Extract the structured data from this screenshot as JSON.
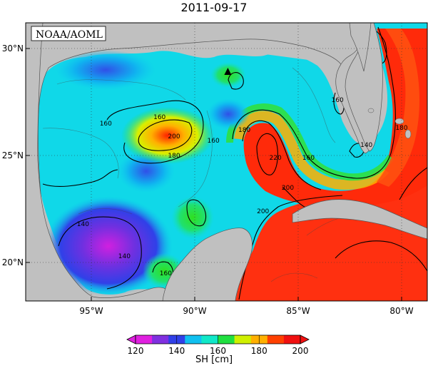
{
  "title": "2011-09-17",
  "credit": "NOAA/AOML",
  "lat_ticks": [
    {
      "value": 30,
      "label": "30°N"
    },
    {
      "value": 25,
      "label": "25°N"
    },
    {
      "value": 20,
      "label": "20°N"
    }
  ],
  "lon_ticks": [
    {
      "value": -95,
      "label": "95°W"
    },
    {
      "value": -90,
      "label": "90°W"
    },
    {
      "value": -85,
      "label": "85°W"
    },
    {
      "value": -80,
      "label": "80°W"
    }
  ],
  "contour_labels": [
    {
      "text": "160",
      "lon": -91.7,
      "lat": 26.8
    },
    {
      "text": "160",
      "lon": -94.3,
      "lat": 26.5
    },
    {
      "text": "200",
      "lon": -91.0,
      "lat": 25.9
    },
    {
      "text": "180",
      "lon": -91.0,
      "lat": 25.0
    },
    {
      "text": "160",
      "lon": -89.1,
      "lat": 25.7
    },
    {
      "text": "180",
      "lon": -87.6,
      "lat": 26.2
    },
    {
      "text": "220",
      "lon": -86.1,
      "lat": 24.9
    },
    {
      "text": "160",
      "lon": -84.5,
      "lat": 24.9
    },
    {
      "text": "200",
      "lon": -85.5,
      "lat": 23.5
    },
    {
      "text": "200",
      "lon": -86.7,
      "lat": 22.4
    },
    {
      "text": "160",
      "lon": -83.1,
      "lat": 27.6
    },
    {
      "text": "140",
      "lon": -81.7,
      "lat": 25.5
    },
    {
      "text": "180",
      "lon": -80.0,
      "lat": 26.3
    },
    {
      "text": "140",
      "lon": -95.4,
      "lat": 21.8
    },
    {
      "text": "140",
      "lon": -93.4,
      "lat": 20.3
    },
    {
      "text": "160",
      "lon": -91.4,
      "lat": 19.5
    }
  ],
  "marker": {
    "shape": "triangle",
    "lon": -88.4,
    "lat": 28.9
  },
  "colorbar": {
    "min": 120,
    "max": 200,
    "ticks": [
      "120",
      "140",
      "160",
      "180",
      "200"
    ],
    "label": "SH [cm]",
    "colors": [
      "#e020e0",
      "#8030e0",
      "#3040e8",
      "#10c0f0",
      "#10e8c8",
      "#20e040",
      "#d0f000",
      "#ffb000",
      "#ff4000",
      "#f01010"
    ]
  }
}
